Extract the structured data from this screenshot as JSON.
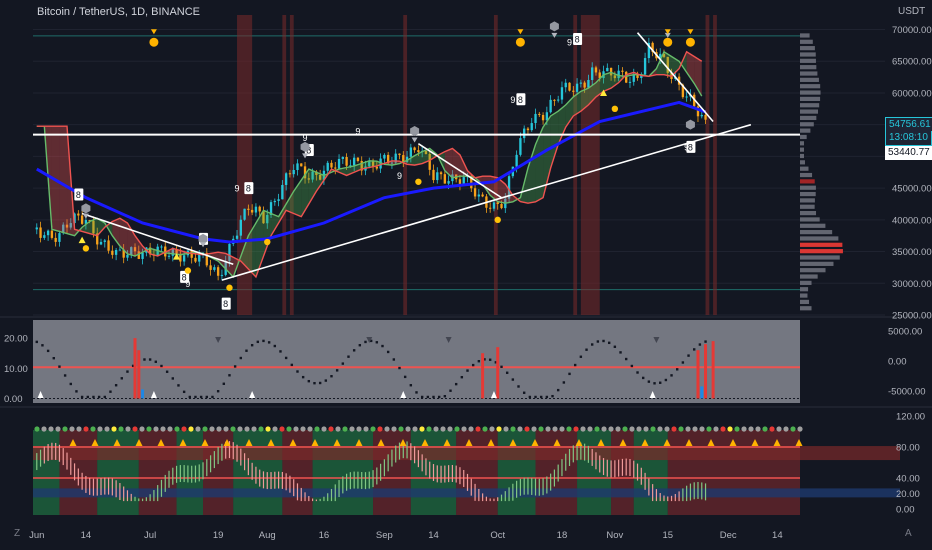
{
  "header": {
    "title": "Bitcoin / TetherUS, 1D, BINANCE",
    "currency": "USDT"
  },
  "price_tags": {
    "last_price": "54756.61",
    "countdown": "13:08:10",
    "line_price": "53440.77"
  },
  "corner_buttons": {
    "left": "Z",
    "right": "A"
  },
  "colors": {
    "background": "#131722",
    "ma_blue": "#1a1aff",
    "trend_white": "#ffffff",
    "up_candle": "#26c6da",
    "down_candle": "#f7a21b",
    "ribbon_green": "#4caf50",
    "ribbon_red": "#ef5350",
    "highlight_red": "#7a2a2a"
  },
  "chart_data": [
    {
      "type": "line",
      "panel": "price",
      "title": "Bitcoin / TetherUS, 1D, BINANCE",
      "y_unit": "USDT",
      "yticks": [
        70000,
        65000,
        60000,
        55000,
        50000,
        45000,
        40000,
        35000,
        30000,
        25000
      ],
      "ytick_labels": [
        "70000.00",
        "65000.00",
        "60000.00",
        "55000.00",
        "50000.00",
        "45000.00",
        "40000.00",
        "35000.00",
        "30000.00",
        "25000.00"
      ],
      "ylim": [
        25000,
        71500
      ],
      "x_labels": [
        "Jun",
        "14",
        "Jul",
        "19",
        "Aug",
        "16",
        "Sep",
        "14",
        "Oct",
        "18",
        "Nov",
        "15",
        "Dec",
        "14"
      ],
      "x_dates": [
        "2024-06-01",
        "2024-06-14",
        "2024-07-01",
        "2024-07-19",
        "2024-08-01",
        "2024-08-16",
        "2024-09-01",
        "2024-09-14",
        "2024-10-01",
        "2024-10-18",
        "2024-11-01",
        "2024-11-15",
        "2024-12-01",
        "2024-12-14"
      ],
      "xlim": [
        "2024-05-31",
        "2024-12-20"
      ],
      "series": [
        {
          "kind": "close",
          "x": [
            "2024-06-01",
            "2024-06-07",
            "2024-06-10",
            "2024-06-14",
            "2024-06-18",
            "2024-06-22",
            "2024-06-27",
            "2024-07-01",
            "2024-07-05",
            "2024-07-10",
            "2024-07-15",
            "2024-07-19",
            "2024-07-23",
            "2024-07-27",
            "2024-07-31",
            "2024-08-04",
            "2024-08-08",
            "2024-08-12",
            "2024-08-16",
            "2024-08-20",
            "2024-08-25",
            "2024-08-29",
            "2024-09-02",
            "2024-09-06",
            "2024-09-10",
            "2024-09-14",
            "2024-09-18",
            "2024-09-22",
            "2024-09-26",
            "2024-09-30",
            "2024-10-03",
            "2024-10-06",
            "2024-10-10",
            "2024-10-14",
            "2024-10-18",
            "2024-10-22",
            "2024-10-26",
            "2024-10-30",
            "2024-11-03",
            "2024-11-07",
            "2024-11-10",
            "2024-11-14",
            "2024-11-18",
            "2024-11-22",
            "2024-11-25"
          ],
          "y": [
            38500,
            37500,
            39500,
            40500,
            36500,
            34000,
            35500,
            34800,
            34500,
            35000,
            33500,
            31000,
            37500,
            41500,
            40500,
            44500,
            48000,
            47000,
            48000,
            48500,
            49500,
            48500,
            49000,
            50500,
            51500,
            46500,
            47000,
            46500,
            43000,
            42500,
            43500,
            50500,
            56000,
            57500,
            60000,
            61000,
            63500,
            62500,
            63000,
            62500,
            66500,
            65000,
            61500,
            57500,
            54756.61
          ]
        },
        {
          "kind": "moving-average",
          "x": [
            "2024-06-01",
            "2024-06-14",
            "2024-06-29",
            "2024-07-15",
            "2024-07-22",
            "2024-08-01",
            "2024-08-16",
            "2024-09-01",
            "2024-09-14",
            "2024-09-30",
            "2024-10-14",
            "2024-10-28",
            "2024-11-11",
            "2024-11-18",
            "2024-11-25"
          ],
          "y": [
            48000,
            43500,
            39500,
            37000,
            36500,
            37000,
            39500,
            43500,
            45000,
            46000,
            51000,
            55500,
            57500,
            58500,
            57000
          ]
        },
        {
          "kind": "trendline",
          "x": [
            "2024-06-13",
            "2024-07-23"
          ],
          "y": [
            41000,
            33000
          ]
        },
        {
          "kind": "trendline",
          "x": [
            "2024-07-20",
            "2024-12-07"
          ],
          "y": [
            30500,
            55000
          ]
        },
        {
          "kind": "trendline",
          "x": [
            "2024-09-10",
            "2024-10-02"
          ],
          "y": [
            52000,
            43500
          ]
        },
        {
          "kind": "trendline",
          "x": [
            "2024-11-07",
            "2024-11-27"
          ],
          "y": [
            69500,
            55500
          ]
        },
        {
          "kind": "horizontal-line",
          "x": [
            "2024-05-31",
            "2024-12-20"
          ],
          "y": [
            53440.77,
            53440.77
          ]
        }
      ],
      "annotations": [
        "8",
        "9",
        "8",
        "9",
        "8",
        "9",
        "8",
        "9",
        "8",
        "9",
        "8",
        "9",
        "8",
        "9",
        "8",
        "9",
        "8",
        "9"
      ]
    },
    {
      "type": "line",
      "panel": "oscillator",
      "yticks_left": [
        0.0,
        10.0,
        20.0
      ],
      "ytick_labels_left": [
        "0.00",
        "10.00",
        "20.00"
      ],
      "ylim_left": [
        -1.5,
        26
      ],
      "yticks_right": [
        5000,
        0,
        -5000
      ],
      "ytick_labels_right": [
        "5000.00",
        "0.00",
        "-5000.00"
      ],
      "ylim_right": [
        -7000,
        6800
      ]
    },
    {
      "type": "area",
      "panel": "momentum",
      "yticks": [
        0,
        20,
        40,
        80,
        120
      ],
      "ytick_labels": [
        "0.00",
        "20.00",
        "40.00",
        "80.00",
        "120.00"
      ],
      "ylim": [
        -8,
        128
      ]
    }
  ]
}
